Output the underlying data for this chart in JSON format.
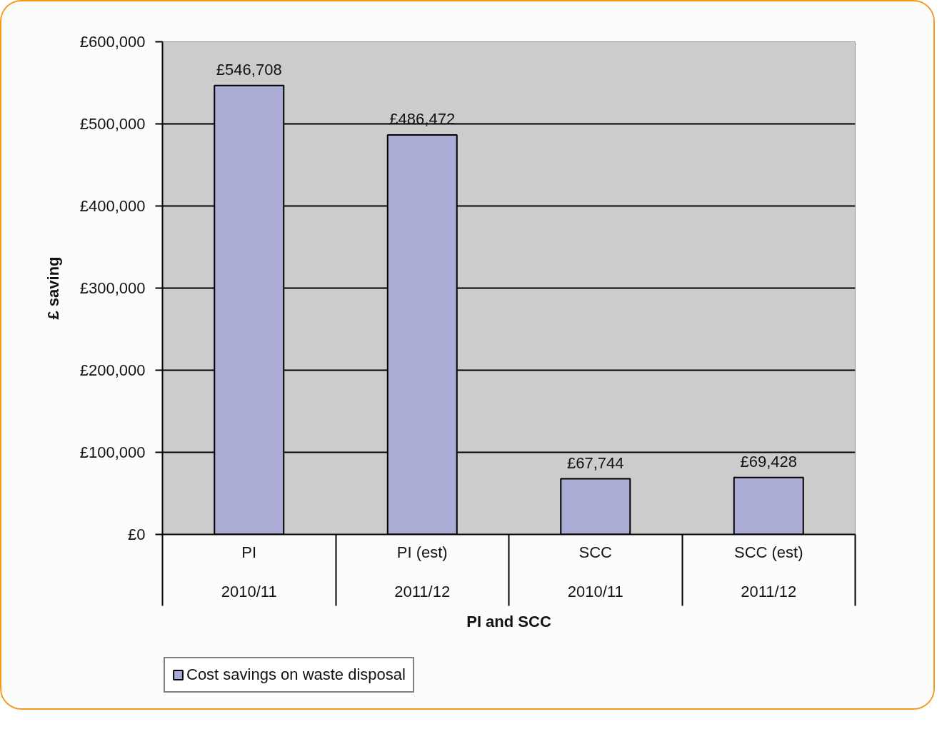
{
  "chart_data": {
    "type": "bar",
    "categories": [
      "PI\n2010/11",
      "PI (est)\n2011/12",
      "SCC\n2010/11",
      "SCC (est)\n2011/12"
    ],
    "series": [
      {
        "name": "Cost savings on waste disposal",
        "color": "#aaacd6",
        "values": [
          546708,
          486472,
          67744,
          69428
        ],
        "value_labels": [
          "£546,708",
          "£486,472",
          "£67,744",
          "£69,428"
        ]
      }
    ],
    "xlabel": "PI and SCC",
    "ylabel": "£ saving",
    "ylim": [
      0,
      600000
    ],
    "yticks": [
      {
        "value": 0,
        "label": "£0"
      },
      {
        "value": 100000,
        "label": "£100,000"
      },
      {
        "value": 200000,
        "label": "£200,000"
      },
      {
        "value": 300000,
        "label": "£300,000"
      },
      {
        "value": 400000,
        "label": "£400,000"
      },
      {
        "value": 500000,
        "label": "£500,000"
      },
      {
        "value": 600000,
        "label": "£600,000"
      }
    ],
    "grid": "y",
    "legend": "bottom left"
  }
}
